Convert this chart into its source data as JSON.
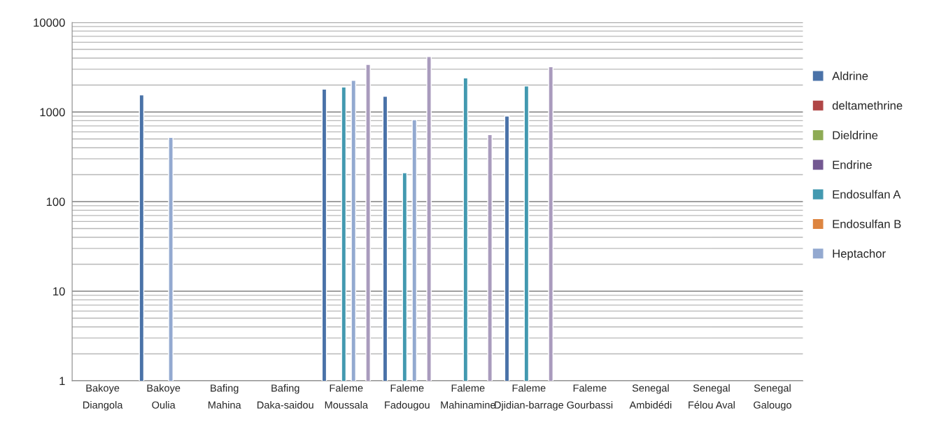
{
  "chart_data": {
    "type": "bar",
    "log": "y",
    "grid": "y",
    "legend": "right",
    "categories": [
      "Bakoye\nDiangola",
      "Bakoye\nOulia",
      "Bafing\nMahina",
      "Bafing\nDaka-saidou",
      "Faleme\nMoussala",
      "Faleme\nFadougou",
      "Faleme\nMahinamine",
      "Faleme\nDjidian-barrage",
      "Faleme\nGourbassi",
      "Senegal\nAmbidédi",
      "Senegal\nFélou Aval",
      "Senegal\nGalougo"
    ],
    "ylim": [
      1,
      10000
    ],
    "yticks": [
      1,
      10,
      100,
      1000,
      10000
    ],
    "series": [
      {
        "name": "Aldrine",
        "color": "#4a72a8",
        "values": [
          null,
          1550,
          null,
          null,
          1800,
          1500,
          null,
          900,
          null,
          null,
          null,
          null
        ]
      },
      {
        "name": "deltamethrine",
        "color": "#b04646",
        "values": [
          null,
          null,
          null,
          null,
          null,
          null,
          null,
          null,
          null,
          null,
          null,
          null
        ]
      },
      {
        "name": "Dieldrine",
        "color": "#8eab55",
        "values": [
          null,
          null,
          null,
          null,
          null,
          null,
          null,
          null,
          null,
          null,
          null,
          null
        ]
      },
      {
        "name": "Endrine",
        "color": "#735891",
        "values": [
          null,
          null,
          null,
          null,
          null,
          null,
          null,
          null,
          null,
          null,
          null,
          null
        ]
      },
      {
        "name": "Endosulfan A",
        "color": "#4399b0",
        "values": [
          null,
          null,
          null,
          null,
          1900,
          210,
          2400,
          1950,
          null,
          null,
          null,
          null
        ]
      },
      {
        "name": "Endosulfan B",
        "color": "#dd8540",
        "values": [
          null,
          null,
          null,
          null,
          null,
          null,
          null,
          null,
          null,
          null,
          null,
          null
        ]
      },
      {
        "name": "Heptachor",
        "color": "#93a9d0",
        "values": [
          null,
          520,
          null,
          null,
          2250,
          820,
          null,
          null,
          null,
          null,
          null,
          null
        ]
      },
      {
        "values": [
          null,
          null,
          null,
          null,
          null,
          null,
          null,
          null,
          null,
          null,
          null,
          null
        ]
      },
      {
        "values": [
          null,
          null,
          null,
          null,
          null,
          null,
          null,
          null,
          null,
          null,
          null,
          null
        ]
      },
      {
        "color": "#a99bbd",
        "values": [
          null,
          null,
          null,
          null,
          3400,
          4150,
          560,
          3200,
          null,
          null,
          null,
          null
        ]
      }
    ]
  }
}
